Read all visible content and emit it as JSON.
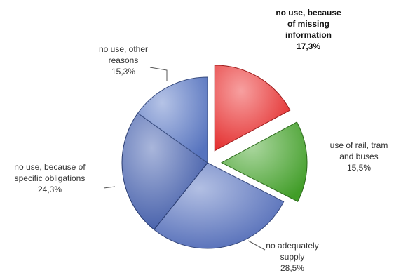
{
  "chart_data": {
    "type": "pie",
    "title": "",
    "unit": "%",
    "exploded": true,
    "start_angle_deg": -90,
    "slices": [
      {
        "name": "no use, because of missing information",
        "label_lines": [
          "no use, because",
          "of missing",
          "information"
        ],
        "value_label": "17,3%",
        "value": 17.3,
        "color": "#ee2b2b",
        "exploded": true,
        "bold": true
      },
      {
        "name": "use of rail, tram and buses",
        "label_lines": [
          "use of rail, tram",
          "and buses"
        ],
        "value_label": "15,5%",
        "value": 15.5,
        "color": "#44a52a",
        "exploded": true,
        "bold": false
      },
      {
        "name": "no adequately supply",
        "label_lines": [
          "no adequately",
          "supply"
        ],
        "value_label": "28,5%",
        "value": 28.5,
        "color": "#5470c0",
        "exploded": false,
        "bold": false
      },
      {
        "name": "no use, because of specific obligations",
        "label_lines": [
          "no use, because of",
          "specific obligations"
        ],
        "value_label": "24,3%",
        "value": 24.3,
        "color": "#3f5cae",
        "exploded": false,
        "bold": false
      },
      {
        "name": "no use, other reasons",
        "label_lines": [
          "no use, other",
          "reasons"
        ],
        "value_label": "15,3%",
        "value": 15.3,
        "color": "#5b79c8",
        "exploded": false,
        "bold": false
      }
    ]
  }
}
